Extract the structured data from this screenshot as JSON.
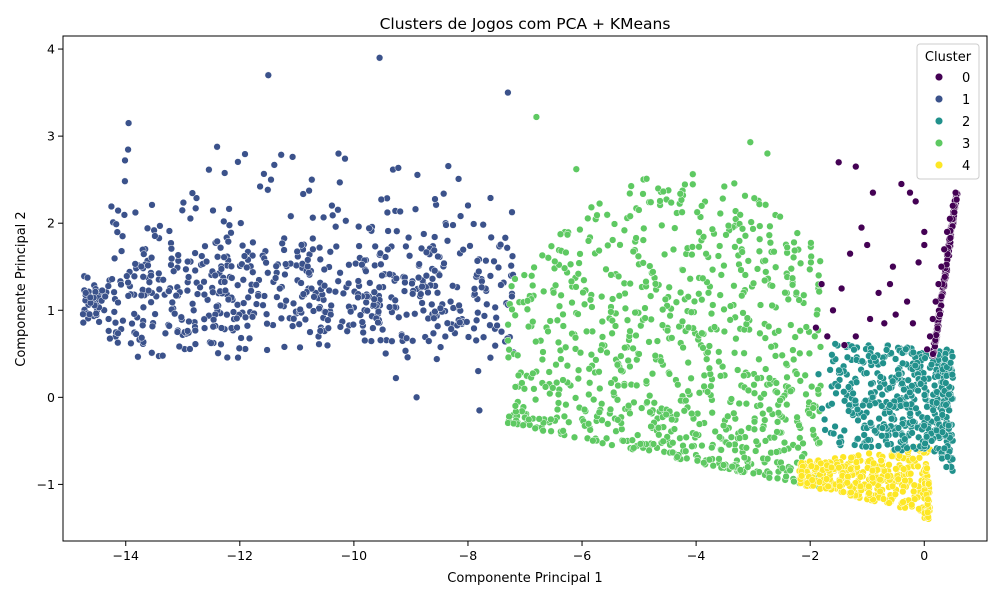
{
  "chart_data": {
    "type": "scatter",
    "title": "Clusters de Jogos com PCA + KMeans",
    "xlabel": "Componente Principal 1",
    "ylabel": "Componente Principal 2",
    "xlim": [
      -15.1,
      1.1
    ],
    "ylim": [
      -1.65,
      4.15
    ],
    "xticks": [
      -14,
      -12,
      -10,
      -8,
      -6,
      -4,
      -2,
      0
    ],
    "yticks": [
      -1,
      0,
      1,
      2,
      3,
      4
    ],
    "grid": false,
    "legend": {
      "title": "Cluster",
      "placement": "top-right"
    },
    "series": [
      {
        "name": "0",
        "color": "#440154",
        "counts": 200,
        "points": [
          [
            0.55,
            2.35
          ],
          [
            0.5,
            2.2
          ],
          [
            0.45,
            2.05
          ],
          [
            0.4,
            1.9
          ],
          [
            0.35,
            1.7
          ],
          [
            0.3,
            1.5
          ],
          [
            0.25,
            1.3
          ],
          [
            0.2,
            1.1
          ],
          [
            0.15,
            0.9
          ],
          [
            0.1,
            0.7
          ],
          [
            0.0,
            1.9
          ],
          [
            0.0,
            1.75
          ],
          [
            -0.1,
            1.55
          ],
          [
            -0.25,
            2.35
          ],
          [
            -0.4,
            2.45
          ],
          [
            -0.15,
            2.25
          ],
          [
            -0.9,
            2.35
          ],
          [
            -1.2,
            2.65
          ],
          [
            -1.5,
            2.7
          ],
          [
            -1.1,
            1.95
          ],
          [
            -1.3,
            1.65
          ],
          [
            -1.0,
            1.75
          ],
          [
            -1.8,
            1.3
          ],
          [
            -0.6,
            1.3
          ],
          [
            -0.8,
            1.2
          ],
          [
            -0.3,
            1.1
          ],
          [
            -0.5,
            0.95
          ],
          [
            -1.45,
            1.25
          ],
          [
            -1.6,
            1.0
          ],
          [
            -0.7,
            0.85
          ],
          [
            -1.2,
            0.7
          ],
          [
            -0.2,
            0.85
          ],
          [
            0.05,
            0.55
          ],
          [
            -1.9,
            0.8
          ],
          [
            -1.7,
            0.7
          ],
          [
            -0.95,
            0.9
          ],
          [
            -1.4,
            0.6
          ],
          [
            -0.55,
            1.5
          ]
        ]
      },
      {
        "name": "1",
        "color": "#3b528b",
        "counts": 700,
        "xrange": [
          -14.75,
          -7.2
        ],
        "yrange": [
          0.0,
          3.9
        ],
        "anchors": [
          [
            -14.7,
            1.2
          ],
          [
            -14.3,
            0.9
          ],
          [
            -11.5,
            3.7
          ],
          [
            -9.55,
            3.9
          ],
          [
            -7.3,
            3.5
          ],
          [
            -8.9,
            0.0
          ],
          [
            -7.8,
            -0.15
          ],
          [
            -13.95,
            3.15
          ]
        ]
      },
      {
        "name": "2",
        "color": "#21918c",
        "counts": 450,
        "xrange": [
          -1.95,
          0.5
        ],
        "yrange": [
          -0.7,
          0.65
        ]
      },
      {
        "name": "3",
        "color": "#5ec962",
        "counts": 900,
        "xrange": [
          -7.3,
          -1.8
        ],
        "yrange": [
          -1.0,
          2.9
        ],
        "anchors": [
          [
            -6.8,
            3.22
          ],
          [
            -3.05,
            2.93
          ],
          [
            -2.75,
            2.8
          ],
          [
            -6.1,
            2.62
          ],
          [
            -7.2,
            -0.3
          ]
        ]
      },
      {
        "name": "4",
        "color": "#fde725",
        "counts": 350,
        "xrange": [
          -2.2,
          0.1
        ],
        "yrange": [
          -1.4,
          -0.5
        ]
      }
    ]
  }
}
